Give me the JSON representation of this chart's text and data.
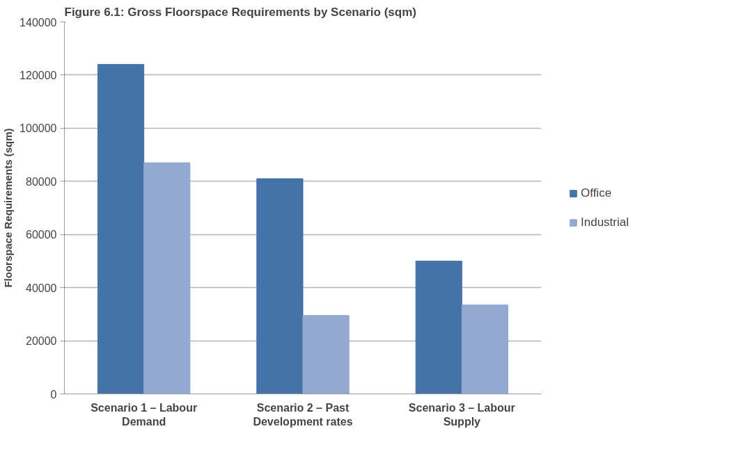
{
  "chart_data": {
    "type": "bar",
    "title": "Figure 6.1: Gross Floorspace Requirements by Scenario (sqm)",
    "ylabel": "Floorspace Requirements (sqm)",
    "categories": [
      "Scenario 1 – Labour\nDemand",
      "Scenario 2 – Past\nDevelopment rates",
      "Scenario 3 – Labour\nSupply"
    ],
    "series": [
      {
        "name": "Office",
        "color": "#4572a7",
        "values": [
          124000,
          81000,
          50000
        ]
      },
      {
        "name": "Industrial",
        "color": "#93a9cf",
        "values": [
          87000,
          29500,
          33500
        ]
      }
    ],
    "ylim": [
      0,
      140000
    ],
    "yticks": [
      0,
      20000,
      40000,
      60000,
      80000,
      100000,
      120000,
      140000
    ],
    "grid": "y",
    "legend": "right"
  }
}
